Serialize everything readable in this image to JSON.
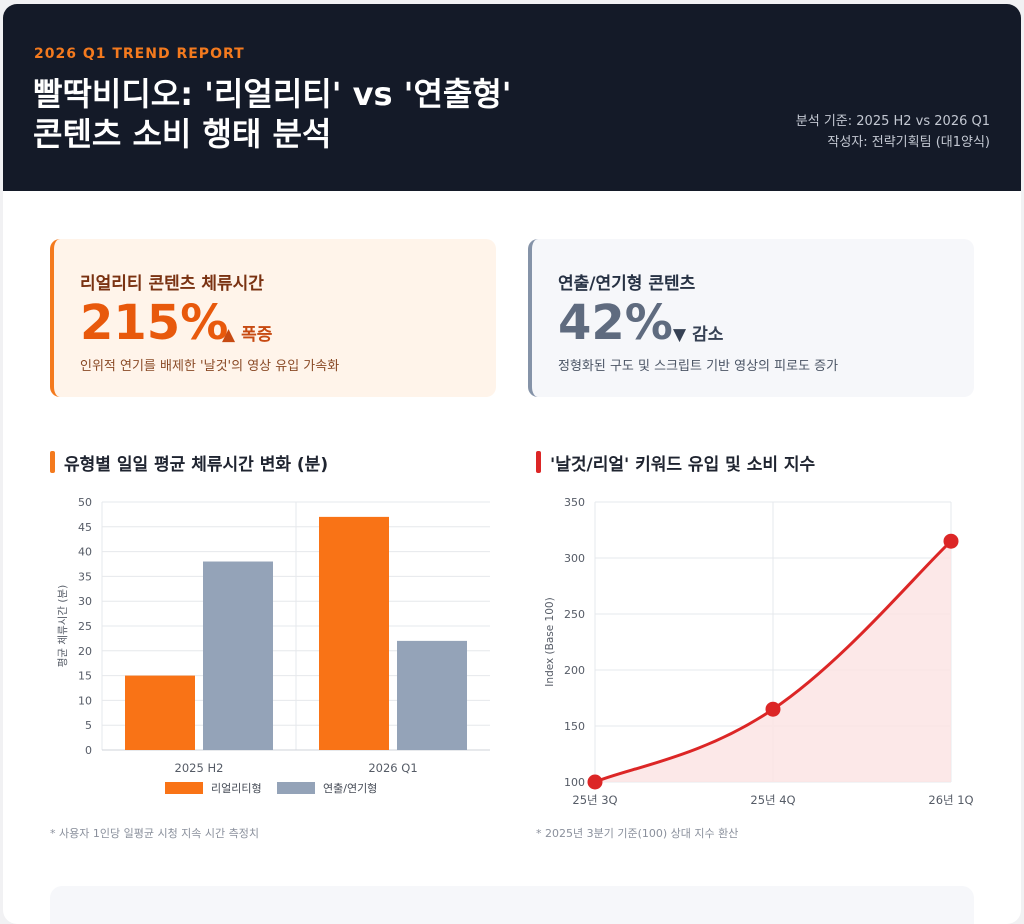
{
  "header": {
    "eyebrow": "2026 Q1 TREND REPORT",
    "title_line1": "빨딱비디오: '리얼리티' vs '연출형'",
    "title_line2": "콘텐츠 소비 행태 분석",
    "basis": "분석 기준: 2025 H2 vs 2026 Q1",
    "author": "작성자: 전략기획팀 (대1양식)"
  },
  "kpis": [
    {
      "label": "리얼리티 콘텐츠 체류시간",
      "value": "215%",
      "arrow": "▲",
      "change": "폭증",
      "desc": "인위적 연기를 배제한 '날것'의 영상 유입 가속화"
    },
    {
      "label": "연출/연기형 콘텐츠",
      "value": "42%",
      "arrow": "▼",
      "change": "감소",
      "desc": "정형화된 구도 및 스크립트 기반 영상의 피로도 증가"
    }
  ],
  "sections": {
    "bar_title": "유형별 일일 평균 체류시간 변화 (분)",
    "line_title": "'날것/리얼' 키워드 유입 및 소비 지수",
    "bar_footnote": "* 사용자 1인당 일평균 시청 지속 시간 측정치",
    "line_footnote": "* 2025년 3분기 기준(100) 상대 지수 환산"
  },
  "colors": {
    "reality": "#f97316",
    "staged": "#94a3b8",
    "line": "#dc2626",
    "area": "#fbe4e4"
  },
  "chart_data": [
    {
      "type": "bar",
      "categories": [
        "2025 H2",
        "2026 Q1"
      ],
      "series": [
        {
          "name": "리얼리티형",
          "values": [
            15,
            47
          ]
        },
        {
          "name": "연출/연기형",
          "values": [
            38,
            22
          ]
        }
      ],
      "ylabel": "평균 체류시간 (분)",
      "ylim": [
        0,
        50
      ],
      "yticks": [
        0,
        5,
        10,
        15,
        20,
        25,
        30,
        35,
        40,
        45,
        50
      ],
      "legend": "bottom",
      "grid": true
    },
    {
      "type": "area",
      "x": [
        "25년 3Q",
        "25년 4Q",
        "26년 1Q"
      ],
      "values": [
        100,
        165,
        315
      ],
      "ylabel": "Index (Base 100)",
      "ylim": [
        100,
        350
      ],
      "yticks": [
        100,
        150,
        200,
        250,
        300,
        350
      ],
      "grid": true
    }
  ]
}
